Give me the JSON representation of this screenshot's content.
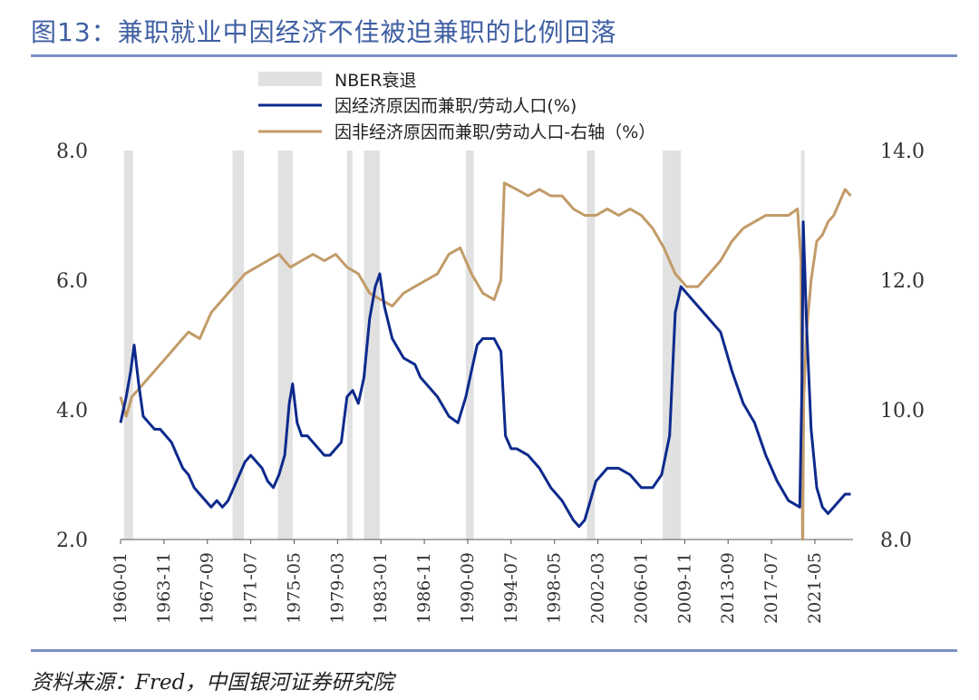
{
  "title": "图13：兼职就业中因经济不佳被迫兼职的比例回落",
  "source": "资料来源：Fred，中国银河证券研究院",
  "colors": {
    "title": "#3f5fa3",
    "series1": "#0d2a8c",
    "series2": "#c29b69",
    "recession": "#e1e1e1",
    "rule": "#7a90c4"
  },
  "chart_data": {
    "type": "line",
    "legend": [
      "NBER衰退",
      "因经济原因而兼职/劳动人口(%)",
      "因非经济原因而兼职/劳动人口-右轴（%）"
    ],
    "left_axis": {
      "ylim": [
        2.0,
        8.0
      ],
      "ticks": [
        "2.0",
        "4.0",
        "6.0",
        "8.0"
      ]
    },
    "right_axis": {
      "ylim": [
        8.0,
        14.0
      ],
      "ticks": [
        "8.0",
        "10.0",
        "12.0",
        "14.0"
      ]
    },
    "xlim": [
      1960.0,
      2024.7
    ],
    "x_ticks": [
      "1960-01",
      "1963-11",
      "1967-09",
      "1971-07",
      "1975-05",
      "1979-03",
      "1983-01",
      "1986-11",
      "1990-09",
      "1994-07",
      "1998-05",
      "2002-03",
      "2006-01",
      "2009-11",
      "2013-09",
      "2017-07",
      "2021-05"
    ],
    "recessions": [
      [
        1960.3,
        1961.1
      ],
      [
        1969.9,
        1970.9
      ],
      [
        1973.9,
        1975.2
      ],
      [
        1980.0,
        1980.5
      ],
      [
        1981.5,
        1982.9
      ],
      [
        1990.5,
        1991.2
      ],
      [
        2001.2,
        2001.9
      ],
      [
        2007.9,
        2009.5
      ],
      [
        2020.1,
        2020.4
      ]
    ],
    "series": [
      {
        "name": "因经济原因而兼职/劳动人口(%)",
        "axis": "left",
        "points": [
          [
            1960.0,
            3.8
          ],
          [
            1960.5,
            4.2
          ],
          [
            1960.9,
            4.6
          ],
          [
            1961.2,
            5.0
          ],
          [
            1961.6,
            4.4
          ],
          [
            1962.0,
            3.9
          ],
          [
            1962.5,
            3.8
          ],
          [
            1963.0,
            3.7
          ],
          [
            1963.5,
            3.7
          ],
          [
            1964.0,
            3.6
          ],
          [
            1964.5,
            3.5
          ],
          [
            1965.0,
            3.3
          ],
          [
            1965.5,
            3.1
          ],
          [
            1966.0,
            3.0
          ],
          [
            1966.5,
            2.8
          ],
          [
            1967.0,
            2.7
          ],
          [
            1967.5,
            2.6
          ],
          [
            1968.0,
            2.5
          ],
          [
            1968.5,
            2.6
          ],
          [
            1969.0,
            2.5
          ],
          [
            1969.5,
            2.6
          ],
          [
            1970.0,
            2.8
          ],
          [
            1970.5,
            3.0
          ],
          [
            1971.0,
            3.2
          ],
          [
            1971.5,
            3.3
          ],
          [
            1972.0,
            3.2
          ],
          [
            1972.5,
            3.1
          ],
          [
            1973.0,
            2.9
          ],
          [
            1973.5,
            2.8
          ],
          [
            1974.0,
            3.0
          ],
          [
            1974.5,
            3.3
          ],
          [
            1974.9,
            4.1
          ],
          [
            1975.2,
            4.4
          ],
          [
            1975.6,
            3.8
          ],
          [
            1976.0,
            3.6
          ],
          [
            1976.5,
            3.6
          ],
          [
            1977.0,
            3.5
          ],
          [
            1977.5,
            3.4
          ],
          [
            1978.0,
            3.3
          ],
          [
            1978.5,
            3.3
          ],
          [
            1979.0,
            3.4
          ],
          [
            1979.5,
            3.5
          ],
          [
            1980.0,
            4.2
          ],
          [
            1980.5,
            4.3
          ],
          [
            1981.0,
            4.1
          ],
          [
            1981.5,
            4.5
          ],
          [
            1982.0,
            5.4
          ],
          [
            1982.5,
            5.9
          ],
          [
            1982.9,
            6.1
          ],
          [
            1983.3,
            5.6
          ],
          [
            1984.0,
            5.1
          ],
          [
            1985.0,
            4.8
          ],
          [
            1986.0,
            4.7
          ],
          [
            1986.5,
            4.5
          ],
          [
            1987.0,
            4.4
          ],
          [
            1988.0,
            4.2
          ],
          [
            1989.0,
            3.9
          ],
          [
            1989.8,
            3.8
          ],
          [
            1990.5,
            4.2
          ],
          [
            1991.0,
            4.6
          ],
          [
            1991.5,
            5.0
          ],
          [
            1992.0,
            5.1
          ],
          [
            1993.0,
            5.1
          ],
          [
            1993.6,
            4.9
          ],
          [
            1994.0,
            3.6
          ],
          [
            1994.5,
            3.4
          ],
          [
            1995.0,
            3.4
          ],
          [
            1996.0,
            3.3
          ],
          [
            1997.0,
            3.1
          ],
          [
            1998.0,
            2.8
          ],
          [
            1999.0,
            2.6
          ],
          [
            2000.0,
            2.3
          ],
          [
            2000.5,
            2.2
          ],
          [
            2001.0,
            2.3
          ],
          [
            2001.5,
            2.6
          ],
          [
            2002.0,
            2.9
          ],
          [
            2003.0,
            3.1
          ],
          [
            2004.0,
            3.1
          ],
          [
            2005.0,
            3.0
          ],
          [
            2006.0,
            2.8
          ],
          [
            2007.0,
            2.8
          ],
          [
            2007.8,
            3.0
          ],
          [
            2008.5,
            3.6
          ],
          [
            2009.0,
            5.5
          ],
          [
            2009.5,
            5.9
          ],
          [
            2010.0,
            5.8
          ],
          [
            2011.0,
            5.6
          ],
          [
            2012.0,
            5.4
          ],
          [
            2013.0,
            5.2
          ],
          [
            2014.0,
            4.6
          ],
          [
            2015.0,
            4.1
          ],
          [
            2016.0,
            3.8
          ],
          [
            2017.0,
            3.3
          ],
          [
            2018.0,
            2.9
          ],
          [
            2019.0,
            2.6
          ],
          [
            2020.0,
            2.5
          ],
          [
            2020.2,
            4.5
          ],
          [
            2020.3,
            6.9
          ],
          [
            2020.6,
            5.3
          ],
          [
            2021.0,
            3.7
          ],
          [
            2021.5,
            2.8
          ],
          [
            2022.0,
            2.5
          ],
          [
            2022.5,
            2.4
          ],
          [
            2023.0,
            2.5
          ],
          [
            2023.5,
            2.6
          ],
          [
            2024.0,
            2.7
          ],
          [
            2024.5,
            2.7
          ]
        ]
      },
      {
        "name": "因非经济原因而兼职/劳动人口-右轴（%）",
        "axis": "right",
        "points": [
          [
            1960.0,
            10.2
          ],
          [
            1960.5,
            9.9
          ],
          [
            1961.0,
            10.2
          ],
          [
            1962.0,
            10.4
          ],
          [
            1963.0,
            10.6
          ],
          [
            1964.0,
            10.8
          ],
          [
            1965.0,
            11.0
          ],
          [
            1966.0,
            11.2
          ],
          [
            1967.0,
            11.1
          ],
          [
            1968.0,
            11.5
          ],
          [
            1969.0,
            11.7
          ],
          [
            1970.0,
            11.9
          ],
          [
            1971.0,
            12.1
          ],
          [
            1972.0,
            12.2
          ],
          [
            1973.0,
            12.3
          ],
          [
            1974.0,
            12.4
          ],
          [
            1975.0,
            12.2
          ],
          [
            1976.0,
            12.3
          ],
          [
            1977.0,
            12.4
          ],
          [
            1978.0,
            12.3
          ],
          [
            1979.0,
            12.4
          ],
          [
            1980.0,
            12.2
          ],
          [
            1981.0,
            12.1
          ],
          [
            1982.0,
            11.8
          ],
          [
            1983.0,
            11.7
          ],
          [
            1984.0,
            11.6
          ],
          [
            1985.0,
            11.8
          ],
          [
            1986.0,
            11.9
          ],
          [
            1987.0,
            12.0
          ],
          [
            1988.0,
            12.1
          ],
          [
            1989.0,
            12.4
          ],
          [
            1990.0,
            12.5
          ],
          [
            1991.0,
            12.1
          ],
          [
            1992.0,
            11.8
          ],
          [
            1993.0,
            11.7
          ],
          [
            1993.6,
            12.0
          ],
          [
            1993.9,
            13.5
          ],
          [
            1995.0,
            13.4
          ],
          [
            1996.0,
            13.3
          ],
          [
            1997.0,
            13.4
          ],
          [
            1998.0,
            13.3
          ],
          [
            1999.0,
            13.3
          ],
          [
            2000.0,
            13.1
          ],
          [
            2001.0,
            13.0
          ],
          [
            2002.0,
            13.0
          ],
          [
            2003.0,
            13.1
          ],
          [
            2004.0,
            13.0
          ],
          [
            2005.0,
            13.1
          ],
          [
            2006.0,
            13.0
          ],
          [
            2007.0,
            12.8
          ],
          [
            2008.0,
            12.5
          ],
          [
            2009.0,
            12.1
          ],
          [
            2010.0,
            11.9
          ],
          [
            2011.0,
            11.9
          ],
          [
            2012.0,
            12.1
          ],
          [
            2013.0,
            12.3
          ],
          [
            2014.0,
            12.6
          ],
          [
            2015.0,
            12.8
          ],
          [
            2016.0,
            12.9
          ],
          [
            2017.0,
            13.0
          ],
          [
            2018.0,
            13.0
          ],
          [
            2019.0,
            13.0
          ],
          [
            2019.8,
            13.1
          ],
          [
            2020.1,
            12.3
          ],
          [
            2020.25,
            8.0
          ],
          [
            2020.35,
            10.2
          ],
          [
            2020.6,
            11.2
          ],
          [
            2021.0,
            12.0
          ],
          [
            2021.5,
            12.6
          ],
          [
            2022.0,
            12.7
          ],
          [
            2022.5,
            12.9
          ],
          [
            2023.0,
            13.0
          ],
          [
            2023.5,
            13.2
          ],
          [
            2024.0,
            13.4
          ],
          [
            2024.5,
            13.3
          ]
        ]
      }
    ]
  }
}
